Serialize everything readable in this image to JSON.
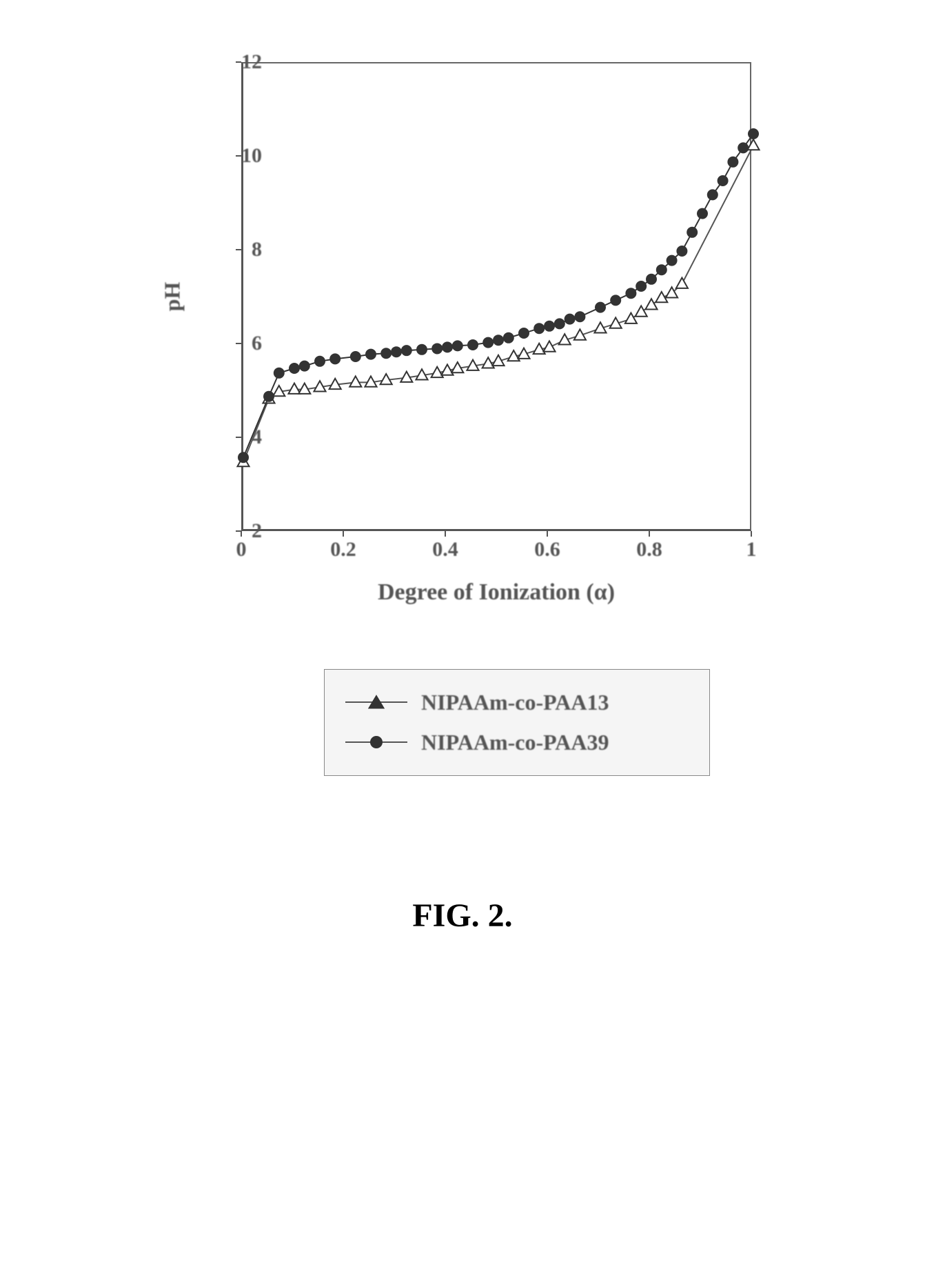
{
  "figure": {
    "caption": "FIG. 2.",
    "chart": {
      "type": "line",
      "xlabel": "Degree of Ionization (α)",
      "ylabel": "pH",
      "xlim": [
        0,
        1
      ],
      "ylim": [
        2,
        12
      ],
      "xticks": [
        0,
        0.2,
        0.4,
        0.6,
        0.8,
        1
      ],
      "xtick_labels": [
        "0",
        "0.2",
        "0.4",
        "0.6",
        "0.8",
        "1"
      ],
      "yticks": [
        2,
        4,
        6,
        8,
        10,
        12
      ],
      "ytick_labels": [
        "2",
        "4",
        "6",
        "8",
        "10",
        "12"
      ],
      "background_color": "#ffffff",
      "border_color": "#555555",
      "text_color": "#555555",
      "label_fontsize": 32,
      "tick_fontsize": 30,
      "series": [
        {
          "name": "NIPAAm-co-PAA13",
          "marker": "open-triangle",
          "marker_size": 18,
          "line_color": "#555555",
          "line_width": 2,
          "fill_color": "#ffffff",
          "x": [
            0,
            0.05,
            0.07,
            0.1,
            0.12,
            0.15,
            0.18,
            0.22,
            0.25,
            0.28,
            0.32,
            0.35,
            0.38,
            0.4,
            0.42,
            0.45,
            0.48,
            0.5,
            0.53,
            0.55,
            0.58,
            0.6,
            0.63,
            0.66,
            0.7,
            0.73,
            0.76,
            0.78,
            0.8,
            0.82,
            0.84,
            0.86,
            1.0
          ],
          "y": [
            3.5,
            4.85,
            5.0,
            5.05,
            5.05,
            5.1,
            5.15,
            5.2,
            5.2,
            5.25,
            5.3,
            5.35,
            5.4,
            5.45,
            5.5,
            5.55,
            5.6,
            5.65,
            5.75,
            5.8,
            5.9,
            5.95,
            6.1,
            6.2,
            6.35,
            6.45,
            6.55,
            6.7,
            6.85,
            7.0,
            7.1,
            7.3,
            10.25
          ]
        },
        {
          "name": "NIPAAm-co-PAA39",
          "marker": "filled-circle",
          "marker_size": 16,
          "line_color": "#333333",
          "line_width": 2,
          "fill_color": "#333333",
          "x": [
            0,
            0.05,
            0.07,
            0.1,
            0.12,
            0.15,
            0.18,
            0.22,
            0.25,
            0.28,
            0.3,
            0.32,
            0.35,
            0.38,
            0.4,
            0.42,
            0.45,
            0.48,
            0.5,
            0.52,
            0.55,
            0.58,
            0.6,
            0.62,
            0.64,
            0.66,
            0.7,
            0.73,
            0.76,
            0.78,
            0.8,
            0.82,
            0.84,
            0.86,
            0.88,
            0.9,
            0.92,
            0.94,
            0.96,
            0.98,
            1.0
          ],
          "y": [
            3.6,
            4.9,
            5.4,
            5.5,
            5.55,
            5.65,
            5.7,
            5.75,
            5.8,
            5.82,
            5.85,
            5.88,
            5.9,
            5.92,
            5.95,
            5.98,
            6.0,
            6.05,
            6.1,
            6.15,
            6.25,
            6.35,
            6.4,
            6.45,
            6.55,
            6.6,
            6.8,
            6.95,
            7.1,
            7.25,
            7.4,
            7.6,
            7.8,
            8.0,
            8.4,
            8.8,
            9.2,
            9.5,
            9.9,
            10.2,
            10.5
          ]
        }
      ],
      "legend": {
        "position": "below",
        "border_color": "#888888",
        "background_color": "#f5f5f5",
        "items": [
          {
            "label": "NIPAAm-co-PAA13",
            "marker": "open-triangle"
          },
          {
            "label": "NIPAAm-co-PAA39",
            "marker": "filled-circle"
          }
        ]
      }
    }
  }
}
